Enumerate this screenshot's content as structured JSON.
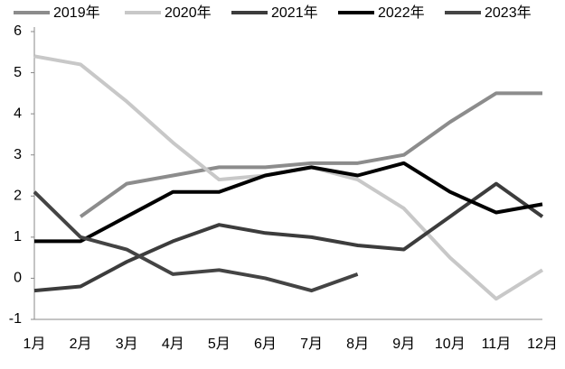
{
  "chart_data": {
    "type": "line",
    "categories": [
      "1月",
      "2月",
      "3月",
      "4月",
      "5月",
      "6月",
      "7月",
      "8月",
      "9月",
      "10月",
      "11月",
      "12月"
    ],
    "series": [
      {
        "name": "2019年",
        "color": "#8c8c8c",
        "values": [
          null,
          1.5,
          2.3,
          2.5,
          2.7,
          2.7,
          2.8,
          2.8,
          3.0,
          3.8,
          4.5,
          4.5
        ]
      },
      {
        "name": "2020年",
        "color": "#c8c8c8",
        "values": [
          5.4,
          5.2,
          4.3,
          3.3,
          2.4,
          2.5,
          2.7,
          2.4,
          1.7,
          0.5,
          -0.5,
          0.2
        ]
      },
      {
        "name": "2021年",
        "color": "#3c3c3c",
        "values": [
          -0.3,
          -0.2,
          0.4,
          0.9,
          1.3,
          1.1,
          1.0,
          0.8,
          0.7,
          1.5,
          2.3,
          1.5
        ]
      },
      {
        "name": "2022年",
        "color": "#000000",
        "values": [
          0.9,
          0.9,
          1.5,
          2.1,
          2.1,
          2.5,
          2.7,
          2.5,
          2.8,
          2.1,
          1.6,
          1.8
        ]
      },
      {
        "name": "2023年",
        "color": "#444444",
        "values": [
          2.1,
          1.0,
          0.7,
          0.1,
          0.2,
          0.0,
          -0.3,
          0.1,
          null,
          null,
          null,
          null
        ]
      }
    ],
    "ylim": [
      -1,
      6
    ],
    "yticks": [
      -1,
      0,
      1,
      2,
      3,
      4,
      5,
      6
    ],
    "grid": false
  }
}
